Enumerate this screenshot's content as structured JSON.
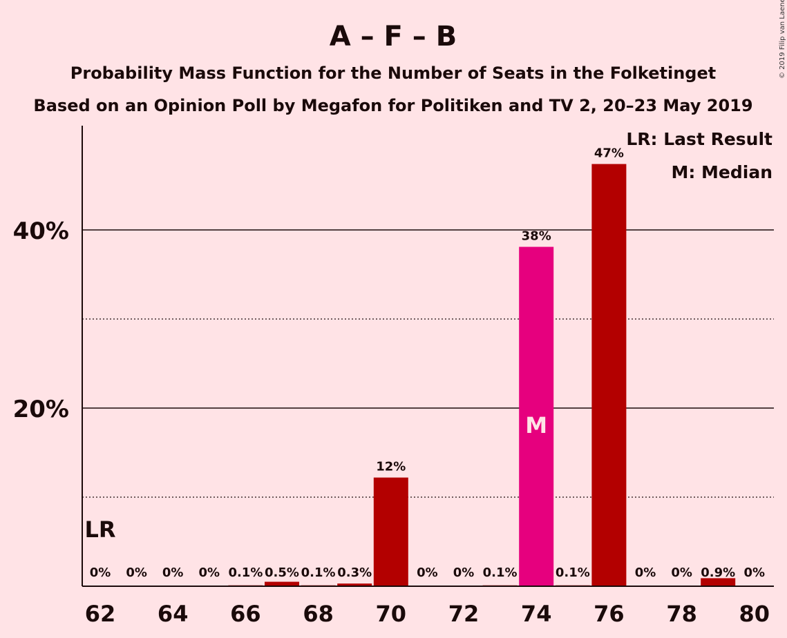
{
  "chart_data": {
    "type": "bar",
    "title": "A – F – B",
    "subtitle_1": "Probability Mass Function for the Number of Seats in the Folketinget",
    "subtitle_2": "Based on an Opinion Poll by Megafon for Politiken and TV 2, 20–23 May 2019",
    "copyright": "© 2019 Filip van Laenen",
    "x": [
      62,
      63,
      64,
      65,
      66,
      67,
      68,
      69,
      70,
      71,
      72,
      73,
      74,
      75,
      76,
      77,
      78,
      79,
      80
    ],
    "values": [
      0,
      0,
      0,
      0,
      0.1,
      0.5,
      0.1,
      0.3,
      12.2,
      0,
      0,
      0.1,
      38.1,
      0.1,
      47.4,
      0,
      0,
      0.9,
      0
    ],
    "value_labels": [
      "0%",
      "0%",
      "0%",
      "0%",
      "0.1%",
      "0.5%",
      "0.1%",
      "0.3%",
      "12%",
      "0%",
      "0%",
      "0.1%",
      "38%",
      "0.1%",
      "47%",
      "0%",
      "0%",
      "0.9%",
      "0%"
    ],
    "x_tick_labels": [
      "62",
      "64",
      "66",
      "68",
      "70",
      "72",
      "74",
      "76",
      "78",
      "80"
    ],
    "y_tick_labels": [
      "20%",
      "40%"
    ],
    "ylim": [
      0,
      52
    ],
    "gridlines_major": [
      20,
      40
    ],
    "gridlines_minor": [
      10,
      30
    ],
    "median_seat": 74,
    "median_marker": "M",
    "last_result_seat": 62,
    "last_result_marker": "LR",
    "legend": [
      "LR: Last Result",
      "M: Median"
    ],
    "legend_position": "top-right",
    "colors": {
      "bar": "#b30000",
      "median_bar": "#e6007e",
      "background": "#ffe3e6",
      "text": "#1a0a0a"
    }
  }
}
